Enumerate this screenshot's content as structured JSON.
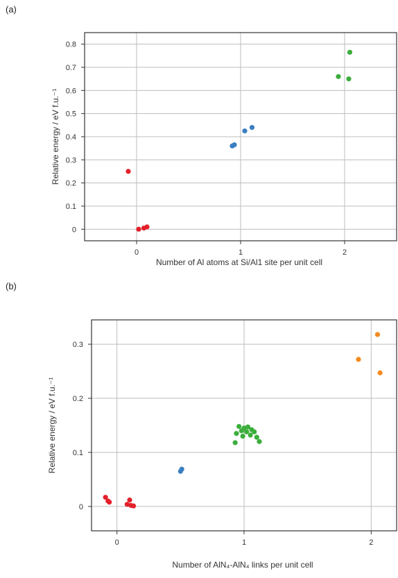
{
  "chart_data": [
    {
      "panel": "(a)",
      "type": "scatter",
      "xlabel": "Number of Al atoms at Si/Al1 site per unit cell",
      "ylabel": "Relative energy / eV f.u.⁻¹",
      "xlim": [
        -0.5,
        2.5
      ],
      "ylim": [
        -0.05,
        0.85
      ],
      "xticks": [
        0,
        1,
        2
      ],
      "yticks": [
        0,
        0.1,
        0.2,
        0.3,
        0.4,
        0.5,
        0.6,
        0.7,
        0.8
      ],
      "ytick_labels": [
        "0",
        "0.1",
        "0.2",
        "0.3",
        "0.4",
        "0.5",
        "0.6",
        "0.7",
        "0.8"
      ],
      "grid": true,
      "series": [
        {
          "color": "#e4202a",
          "points": [
            [
              -0.08,
              0.25
            ],
            [
              0.02,
              0.0
            ],
            [
              0.07,
              0.005
            ],
            [
              0.1,
              0.01
            ]
          ]
        },
        {
          "color": "#3a7fc1",
          "points": [
            [
              0.92,
              0.36
            ],
            [
              0.94,
              0.365
            ],
            [
              1.04,
              0.425
            ],
            [
              1.11,
              0.44
            ]
          ]
        },
        {
          "color": "#3cae3c",
          "points": [
            [
              1.94,
              0.66
            ],
            [
              2.04,
              0.65
            ],
            [
              2.05,
              0.765
            ]
          ]
        }
      ]
    },
    {
      "panel": "(b)",
      "type": "scatter",
      "xlabel": "Number of AlN₄-AlN₄ links per unit cell",
      "ylabel": "Relative energy / eV f.u.⁻¹",
      "xlim": [
        -0.2,
        2.2
      ],
      "ylim": [
        -0.045,
        0.345
      ],
      "xticks": [
        0,
        1,
        2
      ],
      "yticks": [
        0,
        0.1,
        0.2,
        0.3
      ],
      "ytick_labels": [
        "0",
        "0.1",
        "0.2",
        "0.3"
      ],
      "grid": true,
      "series": [
        {
          "color": "#e4202a",
          "points": [
            [
              -0.09,
              0.017
            ],
            [
              -0.07,
              0.01
            ],
            [
              -0.06,
              0.008
            ],
            [
              0.08,
              0.004
            ],
            [
              0.1,
              0.012
            ],
            [
              0.11,
              0.002
            ],
            [
              0.13,
              0.001
            ]
          ]
        },
        {
          "color": "#3a7fc1",
          "points": [
            [
              0.5,
              0.065
            ],
            [
              0.51,
              0.069
            ]
          ]
        },
        {
          "color": "#3cae3c",
          "points": [
            [
              0.93,
              0.118
            ],
            [
              0.94,
              0.135
            ],
            [
              0.96,
              0.148
            ],
            [
              0.98,
              0.14
            ],
            [
              0.99,
              0.13
            ],
            [
              1.0,
              0.145
            ],
            [
              1.02,
              0.138
            ],
            [
              1.03,
              0.147
            ],
            [
              1.05,
              0.132
            ],
            [
              1.06,
              0.142
            ],
            [
              1.08,
              0.138
            ],
            [
              1.1,
              0.128
            ],
            [
              1.12,
              0.12
            ]
          ]
        },
        {
          "color": "#f58a1f",
          "points": [
            [
              1.9,
              0.272
            ],
            [
              2.05,
              0.318
            ],
            [
              2.07,
              0.247
            ]
          ]
        }
      ]
    }
  ]
}
